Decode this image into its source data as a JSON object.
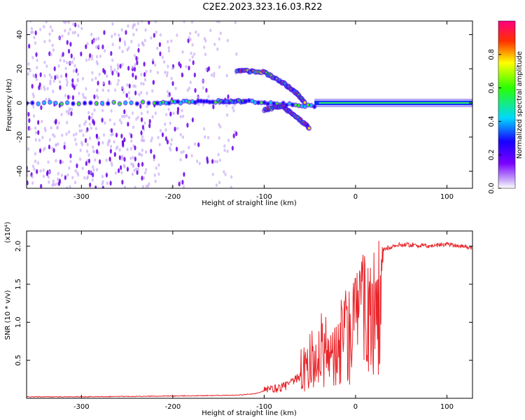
{
  "title": "C2E2.2023.323.16.03.R22",
  "chart_data": [
    {
      "type": "heatmap",
      "xlabel": "Height of straight line (km)",
      "ylabel": "Frequency (Hz)",
      "xlim": [
        -360,
        128
      ],
      "ylim": [
        -50,
        48
      ],
      "xticks": [
        -300,
        -200,
        -100,
        0,
        100
      ],
      "yticks": [
        -40,
        -20,
        0,
        20,
        40
      ],
      "colorbar": {
        "label": "Normalized spectral amplitude",
        "range": [
          0.0,
          1.0
        ],
        "ticks": [
          0.0,
          0.2,
          0.4,
          0.6,
          0.8
        ],
        "colormap": "rainbow"
      },
      "features": [
        {
          "track": "carrier",
          "x": [
            -360,
            -220,
            -150,
            -120,
            -45,
            128
          ],
          "y": [
            0,
            0,
            1,
            1,
            -2,
            0
          ]
        },
        {
          "track": "upper_branch",
          "x": [
            -130,
            -100,
            -80,
            -65,
            -55
          ],
          "y": [
            19,
            18,
            12,
            6,
            0
          ]
        },
        {
          "track": "lower_branch",
          "x": [
            -100,
            -80,
            -65,
            -50
          ],
          "y": [
            -4,
            -2,
            -8,
            -15
          ]
        }
      ]
    },
    {
      "type": "line",
      "xlabel": "Height of straight line (km)",
      "ylabel": "SNR (10 * v/v)",
      "y_multiplier": "(x10⁴)",
      "xlim": [
        -360,
        128
      ],
      "ylim": [
        0,
        2.2
      ],
      "xticks": [
        -300,
        -200,
        -100,
        0,
        100
      ],
      "yticks": [
        0.5,
        1.0,
        1.5,
        2.0
      ],
      "series": [
        {
          "color": "#e8252a",
          "x": [
            -360,
            -300,
            -200,
            -130,
            -110,
            -100,
            -90,
            -80,
            -70,
            -60,
            -50,
            -40,
            -30,
            -20,
            -10,
            0,
            10,
            20,
            30,
            40,
            50,
            60,
            80,
            100,
            128
          ],
          "y": [
            0.02,
            0.02,
            0.03,
            0.04,
            0.06,
            0.1,
            0.12,
            0.15,
            0.2,
            0.3,
            0.55,
            0.75,
            0.8,
            0.95,
            1.1,
            1.25,
            1.6,
            1.8,
            1.95,
            2.0,
            2.02,
            2.02,
            2.0,
            2.03,
            1.98
          ]
        }
      ]
    }
  ]
}
